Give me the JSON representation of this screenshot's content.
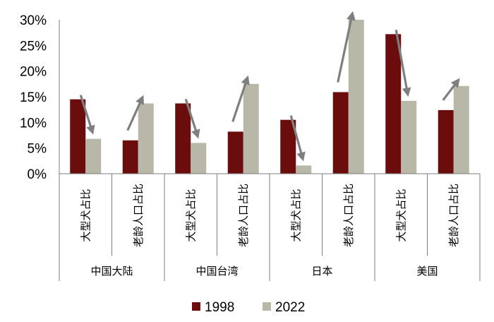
{
  "chart_data": {
    "type": "bar",
    "groups": [
      "中国大陆",
      "中国台湾",
      "日本",
      "美国"
    ],
    "categories": [
      "大型犬占比",
      "老龄人口占比",
      "大型犬占比",
      "老龄人口占比",
      "大型犬占比",
      "老龄人口占比",
      "大型犬占比",
      "老龄人口占比"
    ],
    "series": [
      {
        "name": "1998",
        "color": "#6b0d0d",
        "values": [
          14.5,
          6.5,
          13.7,
          8.2,
          10.5,
          15.9,
          27.2,
          12.4
        ]
      },
      {
        "name": "2022",
        "color": "#b9b7a7",
        "values": [
          6.8,
          13.7,
          6.0,
          17.5,
          1.6,
          30.0,
          14.2,
          17.1
        ]
      }
    ],
    "ylim": [
      0,
      30
    ],
    "yticks": [
      "0%",
      "5%",
      "10%",
      "15%",
      "20%",
      "25%",
      "30%"
    ],
    "trend_arrows": [
      "down",
      "up",
      "down",
      "up",
      "down",
      "up",
      "down",
      "up"
    ],
    "arrow_color": "#7f7f7f",
    "legend_position": "bottom",
    "grid": false
  }
}
